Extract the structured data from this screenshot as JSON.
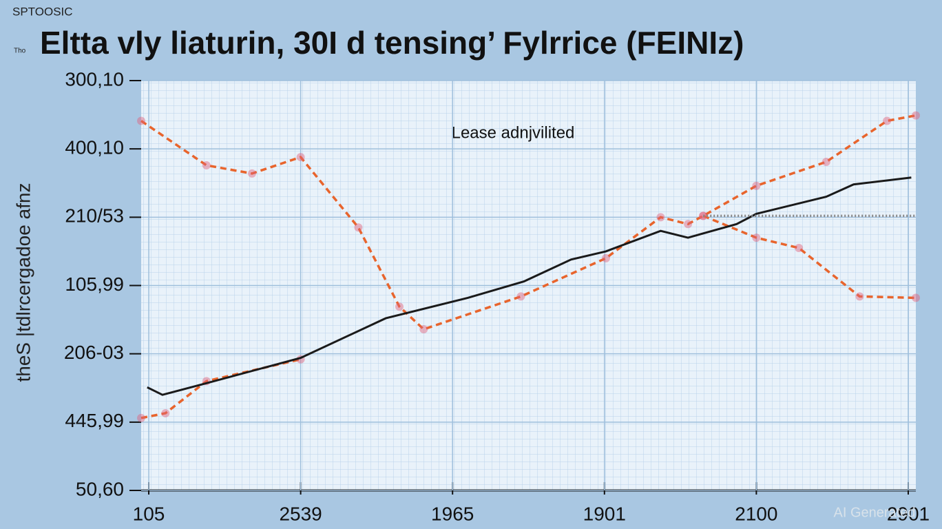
{
  "corner_text": "SPTOOSIC",
  "small_text": "Tho",
  "watermark": "AI Generated",
  "chart_data": {
    "type": "line",
    "title": "Eltta vly liaturin, 30I d tensing’ Fylrrice (FEINIz)",
    "y_label": "theS |tdlrcergadoe afnz",
    "annotation": "Lease adnjvilited",
    "grid": true,
    "xlim": [
      -0.05,
      5.05
    ],
    "ylim": [
      0,
      6
    ],
    "xticks": [
      {
        "value": 0,
        "label": "105"
      },
      {
        "value": 1,
        "label": "2539"
      },
      {
        "value": 2,
        "label": "1965"
      },
      {
        "value": 3,
        "label": "1901"
      },
      {
        "value": 4,
        "label": "2100"
      },
      {
        "value": 5,
        "label": "2901"
      }
    ],
    "yticks": [
      {
        "value": 0,
        "label": "50,60"
      },
      {
        "value": 1,
        "label": "445,99"
      },
      {
        "value": 2,
        "label": "206-03"
      },
      {
        "value": 3,
        "label": "105,99"
      },
      {
        "value": 4,
        "label": "210/53"
      },
      {
        "value": 5,
        "label": "400,10"
      },
      {
        "value": 6,
        "label": "300,10"
      }
    ],
    "series": [
      {
        "color": "#e8642c",
        "style": "dashed",
        "markers": true,
        "x": [
          -0.05,
          0.38,
          0.68,
          1.0,
          1.38,
          1.65,
          1.81,
          2.45,
          3.01,
          3.37,
          3.55,
          3.65,
          4.0,
          4.46,
          4.86,
          5.05
        ],
        "values": [
          5.41,
          4.76,
          4.64,
          4.88,
          3.85,
          2.69,
          2.36,
          2.84,
          3.4,
          4.0,
          3.9,
          4.02,
          4.46,
          4.81,
          5.41,
          5.49
        ]
      },
      {
        "color": "#e8642c",
        "style": "dashed",
        "markers": true,
        "x": [
          -0.05,
          0.11,
          0.38,
          1.0,
          2.0,
          3.65,
          4.0,
          4.28,
          4.68,
          5.05
        ],
        "values": [
          1.06,
          1.13,
          1.6,
          1.92,
          null,
          4.02,
          3.7,
          3.55,
          2.84,
          2.82
        ]
      },
      {
        "color": "#1a1a1a",
        "style": "solid",
        "markers": false,
        "x": [
          -0.01,
          0.09,
          0.38,
          1.0,
          1.56,
          2.1,
          2.47,
          2.78,
          3.01,
          3.37,
          3.55,
          3.87,
          4.0,
          4.46,
          4.64,
          5.02
        ],
        "values": [
          1.51,
          1.4,
          1.57,
          1.94,
          2.52,
          2.82,
          3.06,
          3.38,
          3.5,
          3.8,
          3.7,
          3.9,
          4.05,
          4.3,
          4.48,
          4.58
        ]
      },
      {
        "color": "#888888",
        "style": "dotted",
        "markers": false,
        "x": [
          3.65,
          5.05
        ],
        "values": [
          4.02,
          4.02
        ]
      }
    ]
  }
}
